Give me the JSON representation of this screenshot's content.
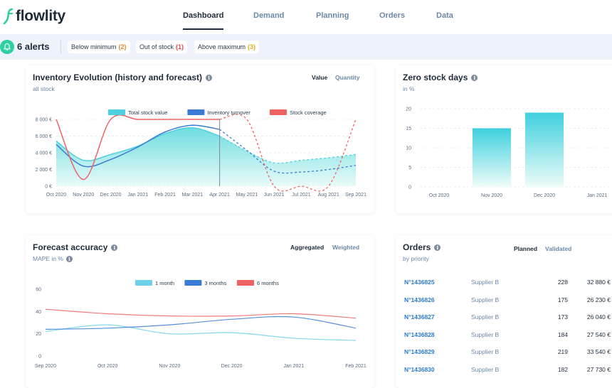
{
  "brand": {
    "name": "flowlity",
    "color": "#2ecfa0"
  },
  "nav": {
    "items": [
      {
        "label": "Dashboard",
        "active": true
      },
      {
        "label": "Demand",
        "active": false
      },
      {
        "label": "Planning",
        "active": false
      },
      {
        "label": "Orders",
        "active": false
      },
      {
        "label": "Data",
        "active": false
      }
    ]
  },
  "alerts": {
    "count_label": "6 alerts",
    "chips": [
      {
        "label": "Below minimum",
        "count": "(2)",
        "color": "#e58a2a"
      },
      {
        "label": "Out of stock",
        "count": "(1)",
        "color": "#e04848"
      },
      {
        "label": "Above maximum",
        "count": "(3)",
        "color": "#e0b020"
      }
    ]
  },
  "inventory": {
    "title": "Inventory Evolution (history and forecast)",
    "subtitle": "all stock",
    "toggles": [
      "Value",
      "Quantity"
    ],
    "active_toggle": "Value",
    "chart_data": {
      "type": "area",
      "legend": [
        {
          "name": "Total stock value",
          "color": "#4fd0e0"
        },
        {
          "name": "Inventory turnover",
          "color": "#3a7bd5"
        },
        {
          "name": "Stock coverage",
          "color": "#f06262"
        }
      ],
      "categories": [
        "Oct 2020",
        "Nov 2020",
        "Dec 2020",
        "Jan 2021",
        "Feb 2021",
        "Mar 2021",
        "Apr 2021",
        "May 2021",
        "Jun 2021",
        "Jul 2021",
        "Aug 2021",
        "Sep 2021"
      ],
      "y_ticks": [
        "0 €",
        "2 000 €",
        "4 000 €",
        "6 000 €",
        "8 000 €"
      ],
      "ylim": [
        0,
        8000
      ],
      "forecast_start": "Apr 2021",
      "series": [
        {
          "name": "Total stock value",
          "values": [
            5400,
            3100,
            3800,
            4800,
            6300,
            7000,
            6000,
            4200,
            2800,
            3100,
            3400,
            3800
          ]
        },
        {
          "name": "Inventory turnover",
          "values": [
            5000,
            2400,
            3200,
            4700,
            6500,
            7300,
            6800,
            4300,
            1800,
            1700,
            2000,
            2500
          ]
        },
        {
          "name": "Stock coverage",
          "values": [
            8000,
            800,
            8000,
            8000,
            8000,
            8000,
            8000,
            8000,
            0,
            0,
            0,
            8000
          ]
        }
      ]
    }
  },
  "zero_stock": {
    "title": "Zero stock days",
    "subtitle": "in %",
    "chart_data": {
      "type": "bar",
      "categories": [
        "Oct 2020",
        "Nov 2020",
        "Dec 2020",
        "Jan 2021"
      ],
      "values": [
        0,
        15,
        19,
        0
      ],
      "y_ticks": [
        "0",
        "5",
        "10",
        "15",
        "20"
      ],
      "ylim": [
        0,
        20
      ]
    }
  },
  "forecast": {
    "title": "Forecast accuracy",
    "subtitle": "MAPE in %",
    "toggles": [
      "Aggregated",
      "Weighted"
    ],
    "active_toggle": "Aggregated",
    "chart_data": {
      "type": "line",
      "legend": [
        {
          "name": "1 month",
          "color": "#6fd0ea"
        },
        {
          "name": "3 months",
          "color": "#3a7bd5"
        },
        {
          "name": "6 months",
          "color": "#f06262"
        }
      ],
      "categories": [
        "Sep 2020",
        "Oct 2020",
        "Nov 2020",
        "Dec 2020",
        "Jan 2021",
        "Feb 2021"
      ],
      "y_ticks": [
        "0",
        "20",
        "40",
        "60"
      ],
      "ylim": [
        0,
        60
      ],
      "series": [
        {
          "name": "1 month",
          "values": [
            22,
            28,
            20,
            21,
            16,
            14
          ]
        },
        {
          "name": "3 months",
          "values": [
            24,
            25,
            28,
            33,
            35,
            25
          ]
        },
        {
          "name": "6 months",
          "values": [
            42,
            38,
            36,
            36,
            38,
            34
          ]
        }
      ]
    }
  },
  "orders": {
    "title": "Orders",
    "subtitle": "by priority",
    "toggles": [
      "Planned",
      "Validated"
    ],
    "active_toggle": "Planned",
    "rows": [
      {
        "id": "N°1436825",
        "supplier": "Supplier B",
        "qty": "228",
        "value": "32 880 €"
      },
      {
        "id": "N°1436826",
        "supplier": "Supplier B",
        "qty": "175",
        "value": "26 230 €"
      },
      {
        "id": "N°1436827",
        "supplier": "Supplier B",
        "qty": "173",
        "value": "26 040 €"
      },
      {
        "id": "N°1436828",
        "supplier": "Supplier B",
        "qty": "184",
        "value": "27 540 €"
      },
      {
        "id": "N°1436829",
        "supplier": "Supplier B",
        "qty": "219",
        "value": "33 540 €"
      },
      {
        "id": "N°1436830",
        "supplier": "Supplier B",
        "qty": "182",
        "value": "27 730 €"
      }
    ]
  }
}
